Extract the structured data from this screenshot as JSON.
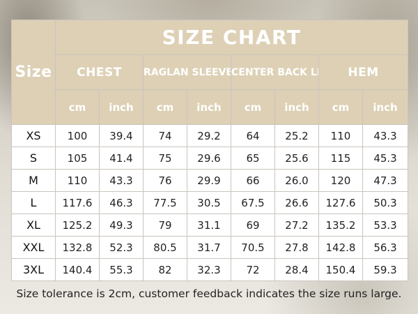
{
  "title": "SIZE CHART",
  "size_header": "Size",
  "groups": [
    {
      "label": "CHEST"
    },
    {
      "label": "RAGLAN SLEEVE LENGTH"
    },
    {
      "label": "CENTER BACK LENGTH"
    },
    {
      "label": "HEM"
    }
  ],
  "units": [
    "cm",
    "inch",
    "cm",
    "inch",
    "cm",
    "inch",
    "cm",
    "inch"
  ],
  "rows": [
    {
      "size": "XS",
      "values": [
        "100",
        "39.4",
        "74",
        "29.2",
        "64",
        "25.2",
        "110",
        "43.3"
      ]
    },
    {
      "size": "S",
      "values": [
        "105",
        "41.4",
        "75",
        "29.6",
        "65",
        "25.6",
        "115",
        "45.3"
      ]
    },
    {
      "size": "M",
      "values": [
        "110",
        "43.3",
        "76",
        "29.9",
        "66",
        "26.0",
        "120",
        "47.3"
      ]
    },
    {
      "size": "L",
      "values": [
        "117.6",
        "46.3",
        "77.5",
        "30.5",
        "67.5",
        "26.6",
        "127.6",
        "50.3"
      ]
    },
    {
      "size": "XL",
      "values": [
        "125.2",
        "49.3",
        "79",
        "31.1",
        "69",
        "27.2",
        "135.2",
        "53.3"
      ]
    },
    {
      "size": "XXL",
      "values": [
        "132.8",
        "52.3",
        "80.5",
        "31.7",
        "70.5",
        "27.8",
        "142.8",
        "56.3"
      ]
    },
    {
      "size": "3XL",
      "values": [
        "140.4",
        "55.3",
        "82",
        "32.3",
        "72",
        "28.4",
        "150.4",
        "59.3"
      ]
    }
  ],
  "footer": "Size tolerance is 2cm, customer feedback indicates the size runs large.",
  "colors": {
    "header_bg": "#ddd0b5",
    "header_text": "#ffffff",
    "border": "#c9c4bd"
  }
}
